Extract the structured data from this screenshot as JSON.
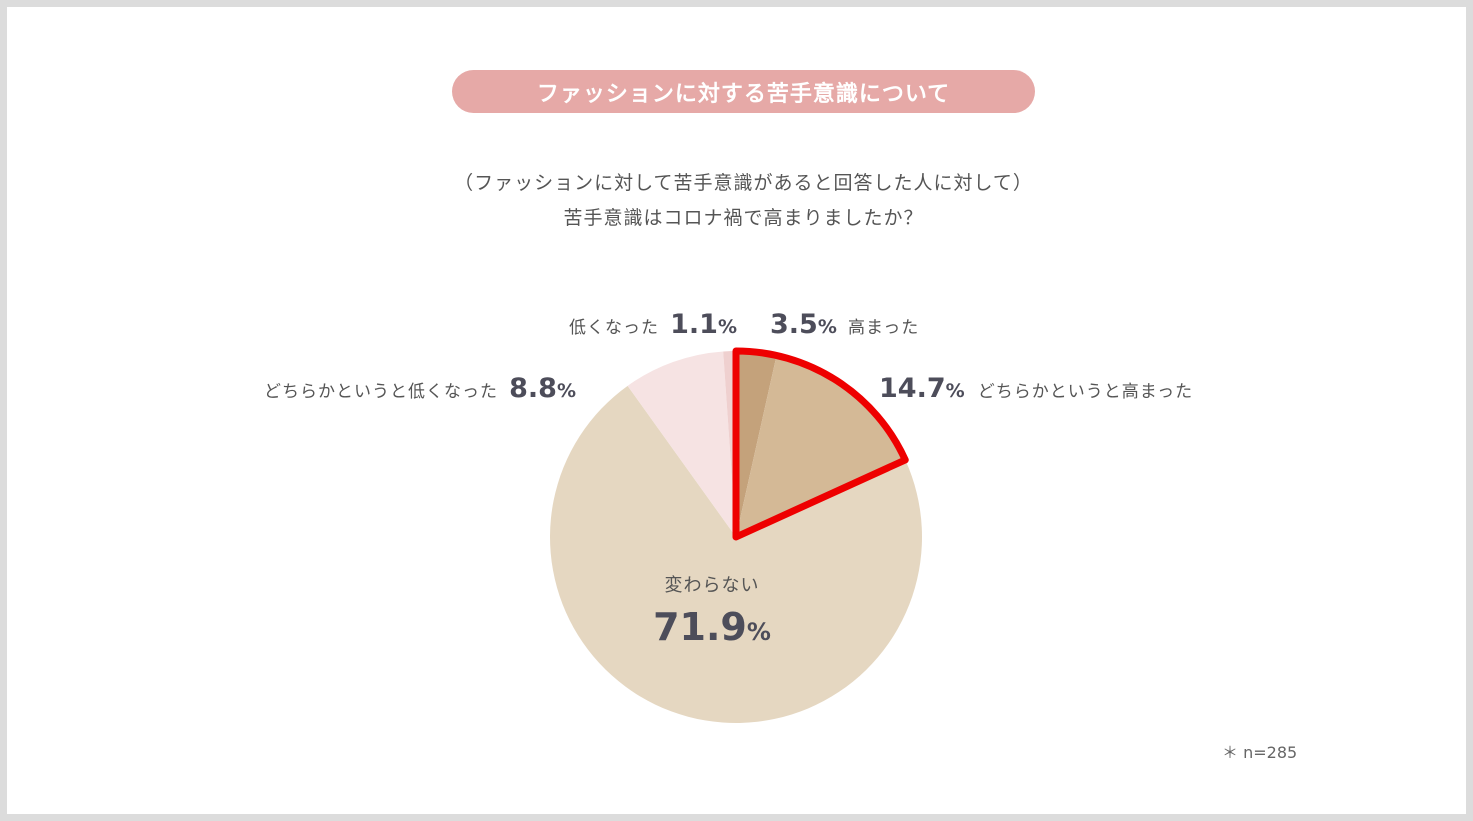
{
  "title": "ファッションに対する苦手意識について",
  "question_line1": "（ファッションに対して苦手意識があると回答した人に対して）",
  "question_line2": "苦手意識はコロナ禍で高まりましたか？",
  "note": "＊ n=285",
  "percent_sign": "%",
  "chart_data": {
    "type": "pie",
    "title": "",
    "start": "12 o'clock, clockwise",
    "slices": [
      {
        "label": "高まった",
        "value": 3.5,
        "value_text": "3.5",
        "color": "#c4a27b"
      },
      {
        "label": "どちらかというと高まった",
        "value": 14.7,
        "value_text": "14.7",
        "color": "#d4b996"
      },
      {
        "label": "変わらない",
        "value": 71.9,
        "value_text": "71.9",
        "color": "#e5d7c1"
      },
      {
        "label": "どちらかというと低くなった",
        "value": 8.8,
        "value_text": "8.8",
        "color": "#f6e3e3"
      },
      {
        "label": "低くなった",
        "value": 1.1,
        "value_text": "1.1",
        "color": "#efd0cf"
      }
    ],
    "highlight": {
      "slices": [
        "高まった",
        "どちらかというと高まった"
      ],
      "color": "#ee0000"
    }
  }
}
